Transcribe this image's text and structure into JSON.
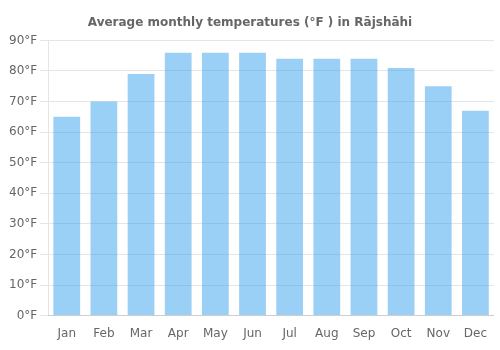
{
  "chart_data": {
    "type": "bar",
    "title": "Average monthly temperatures (°F ) in Rājshāhi",
    "categories": [
      "Jan",
      "Feb",
      "Mar",
      "Apr",
      "May",
      "Jun",
      "Jul",
      "Aug",
      "Sep",
      "Oct",
      "Nov",
      "Dec"
    ],
    "values": [
      65,
      70,
      79,
      86,
      86,
      86,
      84,
      84,
      84,
      81,
      75,
      67
    ],
    "ylim": [
      0,
      90
    ],
    "yticks": [
      {
        "value": 0,
        "label": "0°F"
      },
      {
        "value": 10,
        "label": "10°F"
      },
      {
        "value": 20,
        "label": "20°F"
      },
      {
        "value": 30,
        "label": "30°F"
      },
      {
        "value": 40,
        "label": "40°F"
      },
      {
        "value": 50,
        "label": "50°F"
      },
      {
        "value": 60,
        "label": "60°F"
      },
      {
        "value": 70,
        "label": "70°F"
      },
      {
        "value": 80,
        "label": "80°F"
      },
      {
        "value": 90,
        "label": "90°F"
      }
    ],
    "grid": true
  }
}
